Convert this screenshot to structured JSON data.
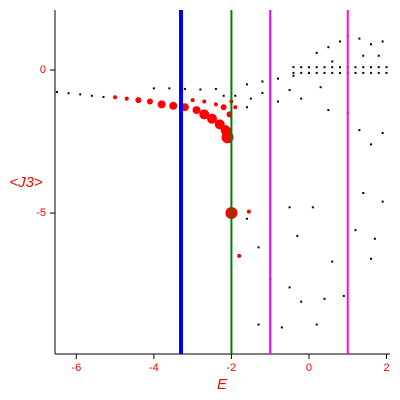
{
  "chart_data": {
    "type": "scatter",
    "xlabel": "E",
    "ylabel": "<J3>",
    "xlim": [
      -6.55,
      2.09
    ],
    "ylim": [
      -9.93,
      2.1
    ],
    "xticks": [
      -6,
      -4,
      -2,
      0,
      2
    ],
    "yticks": [
      -5,
      0
    ],
    "label_color": "#ff0000",
    "vlines": [
      {
        "x": -3.3,
        "color": "#0000ff",
        "linewidth": 4
      },
      {
        "x": -2,
        "color": "#008000",
        "linewidth": 2
      },
      {
        "x": -1,
        "color": "#ff00ff",
        "linewidth": 2
      },
      {
        "x": 1,
        "color": "#ff00ff",
        "linewidth": 2
      }
    ],
    "series": [
      {
        "color": "#000000",
        "x": [
          -6.5,
          -6.2,
          -5.9,
          -5.6,
          -5.3,
          -5.0,
          -4.7,
          -4.4,
          -4.1,
          -3.8,
          -3.5,
          -4.0,
          -3.6,
          -3.2,
          -2.8,
          -2.4,
          -2.0,
          -1.6,
          -1.2,
          -0.8,
          -0.4,
          0,
          -0.4,
          -0.2,
          0,
          0.2,
          0.4,
          0.6,
          0.8,
          1.0,
          1.2,
          1.4,
          1.6,
          1.8,
          2.0,
          -0.4,
          -0.2,
          0,
          0.2,
          0.4,
          0.6,
          0.8,
          1.0,
          1.2,
          1.4,
          1.6,
          1.8,
          2.0,
          0.2,
          0.5,
          0.8,
          1.0,
          1.3,
          1.6,
          1.9,
          0.6,
          1.4,
          1.8,
          -1.5,
          -1.2,
          -0.8,
          -0.5,
          -0.2,
          0.3,
          0.5,
          1.0,
          1.3,
          1.6,
          1.9,
          1.4,
          1.9,
          -0.5,
          -1.6,
          0.1,
          1.2,
          -1.3,
          -0.3,
          0.6,
          1.7,
          -1.0,
          -0.5,
          0.4,
          -0.2,
          0.9,
          -1.3,
          -0.7,
          0.2,
          1.6,
          -1.9,
          -1.6,
          -2.2
        ],
        "values": [
          -0.77,
          -0.81,
          -0.85,
          -0.9,
          -0.94,
          -0.98,
          -1.02,
          -1.06,
          -1.1,
          -1.15,
          -1.19,
          -0.64,
          -0.64,
          -0.66,
          -0.68,
          -0.66,
          -0.6,
          -0.5,
          -0.4,
          -0.3,
          -0.2,
          -0.1,
          -0.1,
          -0.1,
          -0.1,
          -0.1,
          -0.1,
          -0.1,
          -0.1,
          -0.1,
          -0.1,
          -0.1,
          -0.1,
          -0.1,
          -0.1,
          0.1,
          0.1,
          0.1,
          0.1,
          0.1,
          0.1,
          0.1,
          0.1,
          0.1,
          0.1,
          0.1,
          0.1,
          0.1,
          0.6,
          0.8,
          1.0,
          1.2,
          1.1,
          0.9,
          1.0,
          0.3,
          0.5,
          0.5,
          -1.0,
          -0.8,
          -1.1,
          -0.7,
          -1.0,
          -0.6,
          -1.4,
          -1.5,
          -2.1,
          -2.6,
          -2.2,
          -4.3,
          -4.6,
          -4.8,
          -5.2,
          -4.8,
          -5.6,
          -6.2,
          -5.8,
          -6.7,
          -5.9,
          -7.3,
          -7.6,
          -8.0,
          -8.1,
          -7.9,
          -8.9,
          -9.0,
          -8.9,
          -6.6,
          -0.9,
          -1.3,
          -0.9
        ]
      },
      {
        "color": "#ff0000",
        "x": [
          -5.0,
          -4.7,
          -4.4,
          -4.1,
          -3.8,
          -3.5,
          -3.2,
          -2.9,
          -2.7,
          -2.5,
          -2.3,
          -2.15,
          -2.1,
          -3.0,
          -2.7,
          -2.4,
          -2.2,
          -2.05,
          -2.0,
          -1.9,
          -2.0,
          -1.55,
          -1.8
        ],
        "values": [
          -0.95,
          -1.0,
          -1.05,
          -1.1,
          -1.2,
          -1.25,
          -1.3,
          -1.4,
          -1.55,
          -1.7,
          -1.9,
          -2.1,
          -2.35,
          -1.05,
          -1.1,
          -1.2,
          -1.3,
          -1.55,
          -1.1,
          -1.3,
          -5.0,
          -4.95,
          -6.5
        ],
        "sizes": [
          2,
          2,
          3,
          3,
          4,
          4,
          4,
          4,
          5,
          5,
          5,
          5,
          6,
          2,
          2,
          2,
          3,
          3,
          2,
          2,
          6,
          2,
          2
        ]
      }
    ]
  }
}
